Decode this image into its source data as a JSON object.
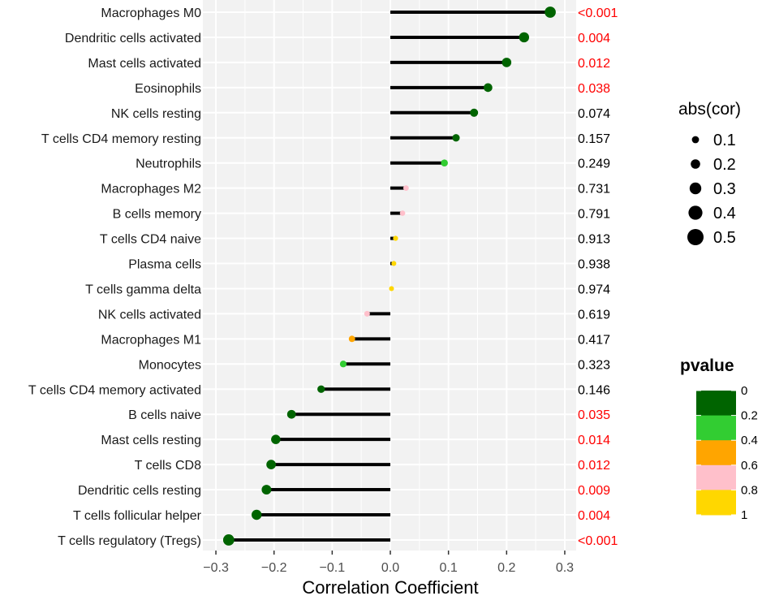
{
  "chart_data": {
    "type": "lollipop",
    "xlabel": "Correlation Coefficient",
    "xlim": [
      -0.31,
      0.31
    ],
    "x_ticks": [
      -0.3,
      -0.2,
      -0.1,
      0.0,
      0.1,
      0.2,
      0.3
    ],
    "x_tick_labels": [
      "−0.3",
      "−0.2",
      "−0.1",
      "0.0",
      "0.1",
      "0.2",
      "0.3"
    ],
    "items": [
      {
        "name": "Macrophages M0",
        "cor": 0.275,
        "pvalue": 0.0005,
        "pvalue_label": "<0.001"
      },
      {
        "name": "Dendritic cells activated",
        "cor": 0.23,
        "pvalue": 0.004,
        "pvalue_label": "0.004"
      },
      {
        "name": "Mast cells activated",
        "cor": 0.2,
        "pvalue": 0.012,
        "pvalue_label": "0.012"
      },
      {
        "name": "Eosinophils",
        "cor": 0.168,
        "pvalue": 0.038,
        "pvalue_label": "0.038"
      },
      {
        "name": "NK cells resting",
        "cor": 0.144,
        "pvalue": 0.074,
        "pvalue_label": "0.074"
      },
      {
        "name": "T cells CD4 memory resting",
        "cor": 0.113,
        "pvalue": 0.157,
        "pvalue_label": "0.157"
      },
      {
        "name": "Neutrophils",
        "cor": 0.093,
        "pvalue": 0.249,
        "pvalue_label": "0.249"
      },
      {
        "name": "Macrophages M2",
        "cor": 0.027,
        "pvalue": 0.731,
        "pvalue_label": "0.731"
      },
      {
        "name": "B cells memory",
        "cor": 0.021,
        "pvalue": 0.791,
        "pvalue_label": "0.791"
      },
      {
        "name": "T cells CD4 naive",
        "cor": 0.009,
        "pvalue": 0.913,
        "pvalue_label": "0.913"
      },
      {
        "name": "Plasma cells",
        "cor": 0.006,
        "pvalue": 0.938,
        "pvalue_label": "0.938"
      },
      {
        "name": "T cells gamma delta",
        "cor": 0.002,
        "pvalue": 0.974,
        "pvalue_label": "0.974"
      },
      {
        "name": "NK cells activated",
        "cor": -0.04,
        "pvalue": 0.619,
        "pvalue_label": "0.619"
      },
      {
        "name": "Macrophages M1",
        "cor": -0.066,
        "pvalue": 0.417,
        "pvalue_label": "0.417"
      },
      {
        "name": "Monocytes",
        "cor": -0.081,
        "pvalue": 0.323,
        "pvalue_label": "0.323"
      },
      {
        "name": "T cells CD4 memory activated",
        "cor": -0.119,
        "pvalue": 0.146,
        "pvalue_label": "0.146"
      },
      {
        "name": "B cells naive",
        "cor": -0.17,
        "pvalue": 0.035,
        "pvalue_label": "0.035"
      },
      {
        "name": "Mast cells resting",
        "cor": -0.197,
        "pvalue": 0.014,
        "pvalue_label": "0.014"
      },
      {
        "name": "T cells CD8",
        "cor": -0.205,
        "pvalue": 0.012,
        "pvalue_label": "0.012"
      },
      {
        "name": "Dendritic cells resting",
        "cor": -0.213,
        "pvalue": 0.009,
        "pvalue_label": "0.009"
      },
      {
        "name": "T cells follicular helper",
        "cor": -0.23,
        "pvalue": 0.004,
        "pvalue_label": "0.004"
      },
      {
        "name": "T cells regulatory (Tregs)",
        "cor": -0.278,
        "pvalue": 0.0005,
        "pvalue_label": "<0.001"
      }
    ],
    "significance_threshold": 0.05,
    "pvalue_label_colors": {
      "significant": "#ff0000",
      "not_significant": "#000000"
    },
    "size_legend": {
      "title": "abs(cor)",
      "values": [
        0.1,
        0.2,
        0.3,
        0.4,
        0.5
      ],
      "labels": [
        "0.1",
        "0.2",
        "0.3",
        "0.4",
        "0.5"
      ]
    },
    "color_legend": {
      "title": "pvalue",
      "labels": [
        "0",
        "0.2",
        "0.4",
        "0.6",
        "0.8",
        "1"
      ],
      "breaks": [
        0.2,
        0.4,
        0.6,
        0.8,
        1.0
      ],
      "colors": [
        "#006400",
        "#32cd32",
        "#ffa500",
        "#ffc0cb",
        "#ffd700"
      ]
    },
    "style": {
      "panel_background": "#f2f2f2",
      "grid_color": "#ffffff",
      "stem_color": "#000000"
    }
  }
}
